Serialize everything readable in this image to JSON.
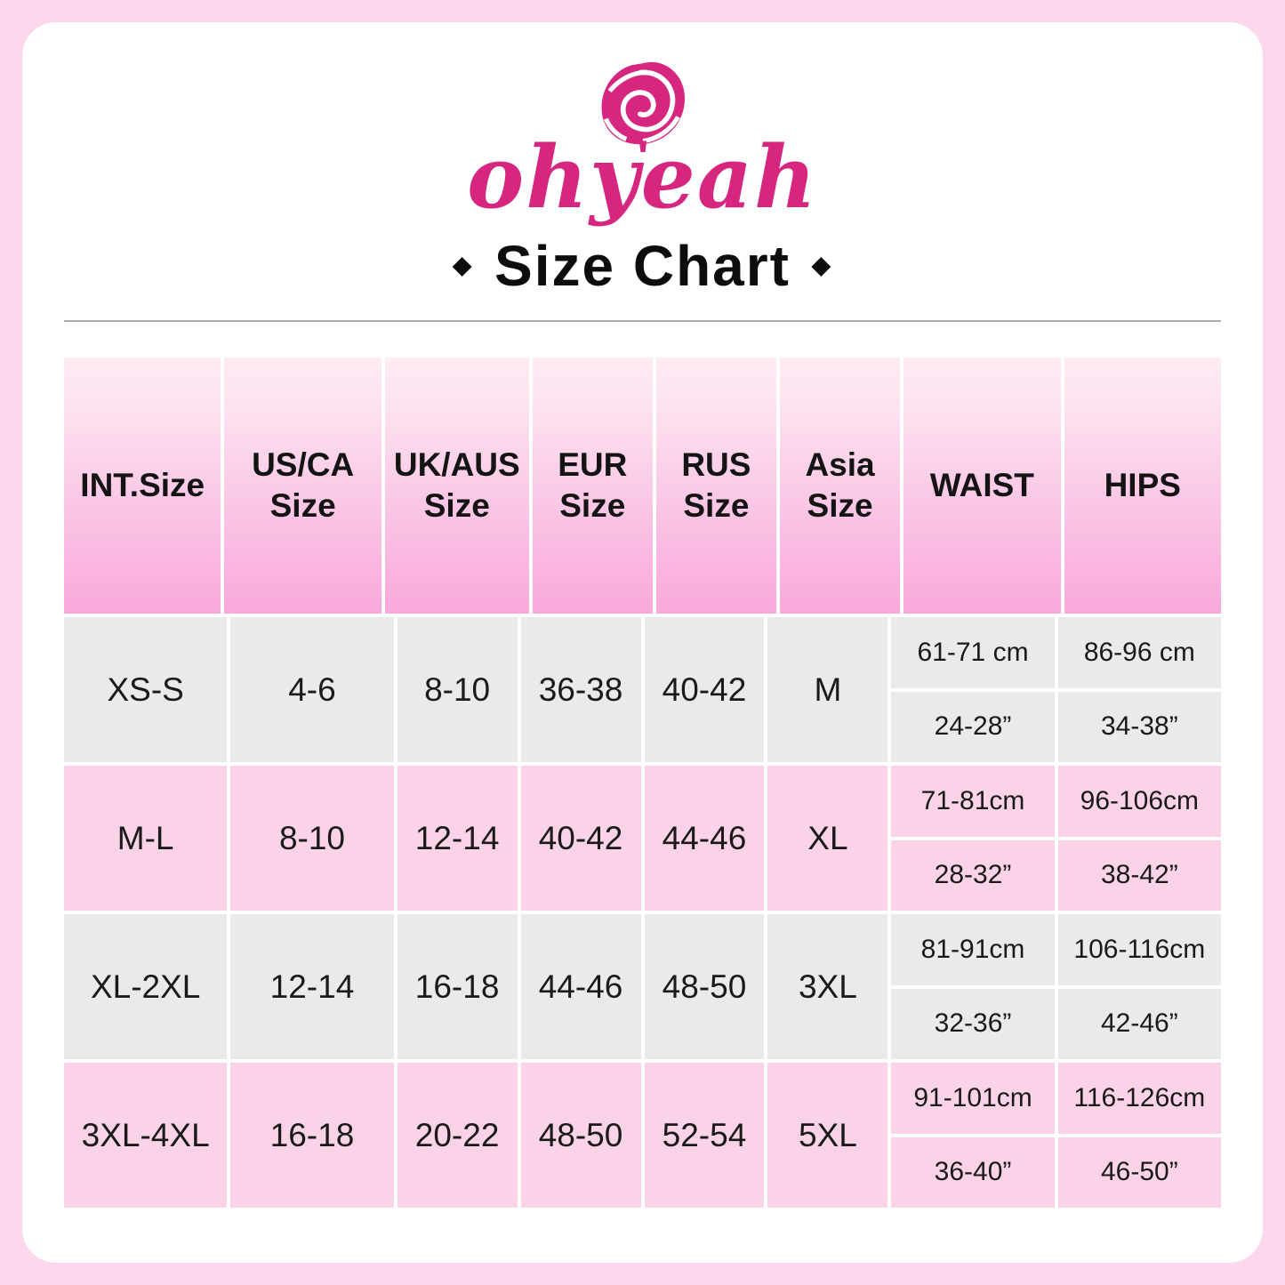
{
  "brand": {
    "logo_text": "ohyeah",
    "logo_color": "#d7267f"
  },
  "title": {
    "bullet": "◆",
    "text": "Size Chart"
  },
  "colors": {
    "page_background": "#fdd8ec",
    "card_background": "#ffffff",
    "brand_pink": "#d7267f",
    "header_gradient_top": "#fdecf4",
    "header_gradient_bottom": "#f9a8da",
    "row_gray": "#ebeaea",
    "row_pink": "#fbd3e9",
    "text": "#1a1a1a"
  },
  "chart_data": {
    "type": "table",
    "title": "Size Chart",
    "columns": [
      "INT.Size",
      "US/CA Size",
      "UK/AUS Size",
      "EUR Size",
      "RUS Size",
      "Asia Size",
      "WAIST",
      "HIPS"
    ],
    "rows": [
      {
        "int_size": "XS-S",
        "us_ca": "4-6",
        "uk_aus": "8-10",
        "eur": "36-38",
        "rus": "40-42",
        "asia": "M",
        "waist": {
          "cm": "61-71 cm",
          "inch": "24-28”"
        },
        "hips": {
          "cm": "86-96 cm",
          "inch": "34-38”"
        }
      },
      {
        "int_size": "M-L",
        "us_ca": "8-10",
        "uk_aus": "12-14",
        "eur": "40-42",
        "rus": "44-46",
        "asia": "XL",
        "waist": {
          "cm": "71-81cm",
          "inch": "28-32”"
        },
        "hips": {
          "cm": "96-106cm",
          "inch": "38-42”"
        }
      },
      {
        "int_size": "XL-2XL",
        "us_ca": "12-14",
        "uk_aus": "16-18",
        "eur": "44-46",
        "rus": "48-50",
        "asia": "3XL",
        "waist": {
          "cm": "81-91cm",
          "inch": "32-36”"
        },
        "hips": {
          "cm": "106-116cm",
          "inch": "42-46”"
        }
      },
      {
        "int_size": "3XL-4XL",
        "us_ca": "16-18",
        "uk_aus": "20-22",
        "eur": "48-50",
        "rus": "52-54",
        "asia": "5XL",
        "waist": {
          "cm": "91-101cm",
          "inch": "36-40”"
        },
        "hips": {
          "cm": "116-126cm",
          "inch": "46-50”"
        }
      }
    ]
  }
}
